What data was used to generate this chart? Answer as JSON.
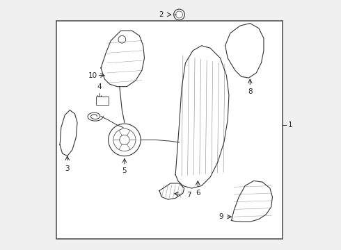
{
  "bg_color": "#f0f0f0",
  "border_color": "#555555",
  "line_color": "#333333",
  "label_color": "#222222",
  "white": "#ffffff"
}
